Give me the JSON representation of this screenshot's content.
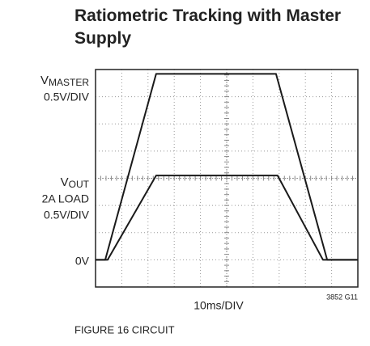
{
  "chart_data": {
    "type": "line",
    "title": "Ratiometric Tracking with Master Supply",
    "xlabel": "10ms/DIV",
    "note": "3852 G11",
    "caption": "FIGURE 16 CIRCUIT",
    "labels": {
      "master": {
        "main": "V",
        "sub": "MASTER",
        "scale": "0.5V/DIV"
      },
      "out": {
        "main": "V",
        "sub": "OUT",
        "load": "2A LOAD",
        "scale": "0.5V/DIV"
      },
      "zero": "0V"
    },
    "xlim": [
      0,
      100
    ],
    "ylim": [
      -0.5,
      3.5
    ],
    "xticks": [
      0,
      10,
      20,
      30,
      40,
      50,
      60,
      70,
      80,
      90,
      100
    ],
    "yticks": [
      -0.5,
      0,
      0.5,
      1,
      1.5,
      2,
      2.5,
      3,
      3.5
    ],
    "grid": true,
    "series": [
      {
        "color": "#1a1a1a",
        "x": [
          0,
          3.7,
          23.1,
          68.8,
          88.3,
          100
        ],
        "values": [
          0,
          0,
          3.42,
          3.42,
          0,
          0
        ]
      },
      {
        "color": "#1a1a1a",
        "x": [
          0,
          4.6,
          23.1,
          69.4,
          86.7,
          100
        ],
        "values": [
          0,
          0,
          1.55,
          1.55,
          0,
          0
        ]
      }
    ]
  }
}
